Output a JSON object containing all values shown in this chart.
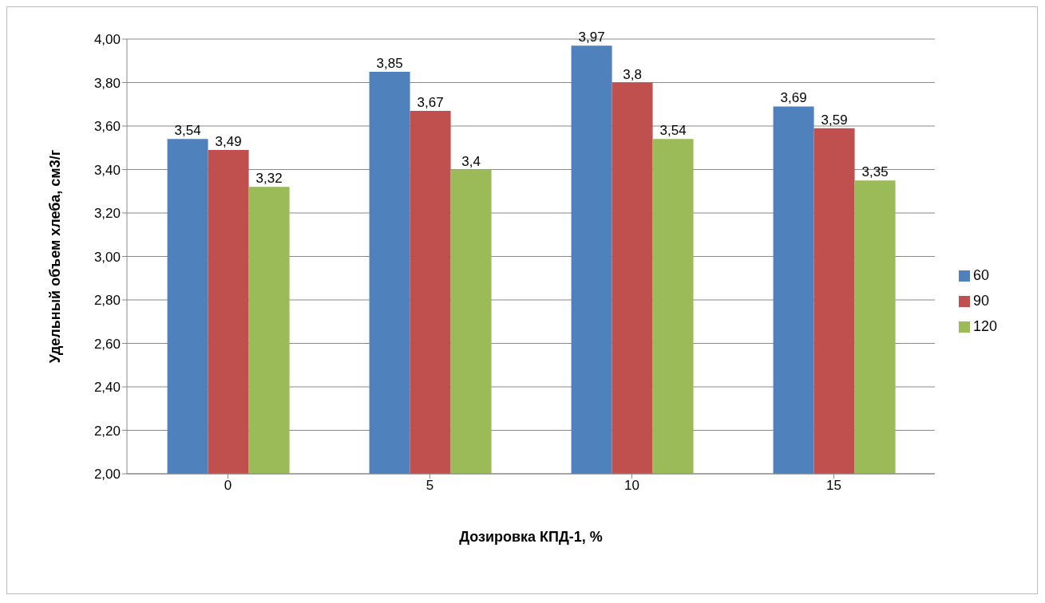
{
  "chart_data": {
    "type": "bar",
    "xlabel": "Дозировка КПД-1, %",
    "ylabel": "Удельный объем хлеба, см3/г",
    "categories": [
      "0",
      "5",
      "10",
      "15"
    ],
    "series": [
      {
        "name": "60",
        "color": "#4f81bd",
        "values": [
          3.54,
          3.85,
          3.97,
          3.69
        ],
        "value_labels": [
          "3,54",
          "3,85",
          "3,97",
          "3,69"
        ]
      },
      {
        "name": "90",
        "color": "#c0504d",
        "values": [
          3.49,
          3.67,
          3.8,
          3.59
        ],
        "value_labels": [
          "3,49",
          "3,67",
          "3,8",
          "3,59"
        ]
      },
      {
        "name": "120",
        "color": "#9bbb59",
        "values": [
          3.32,
          3.4,
          3.54,
          3.35
        ],
        "value_labels": [
          "3,32",
          "3,4",
          "3,54",
          "3,35"
        ]
      }
    ],
    "ylim": [
      2,
      4
    ],
    "yticks": [
      {
        "value": 2,
        "label": "2,00"
      },
      {
        "value": 2.2,
        "label": "2,20"
      },
      {
        "value": 2.4,
        "label": "2,40"
      },
      {
        "value": 2.6,
        "label": "2,60"
      },
      {
        "value": 2.8,
        "label": "2,80"
      },
      {
        "value": 3,
        "label": "3,00"
      },
      {
        "value": 3.2,
        "label": "3,20"
      },
      {
        "value": 3.4,
        "label": "3,40"
      },
      {
        "value": 3.6,
        "label": "3,60"
      },
      {
        "value": 3.8,
        "label": "3,80"
      },
      {
        "value": 4,
        "label": "4,00"
      }
    ],
    "grid": "y",
    "legend": "right"
  }
}
